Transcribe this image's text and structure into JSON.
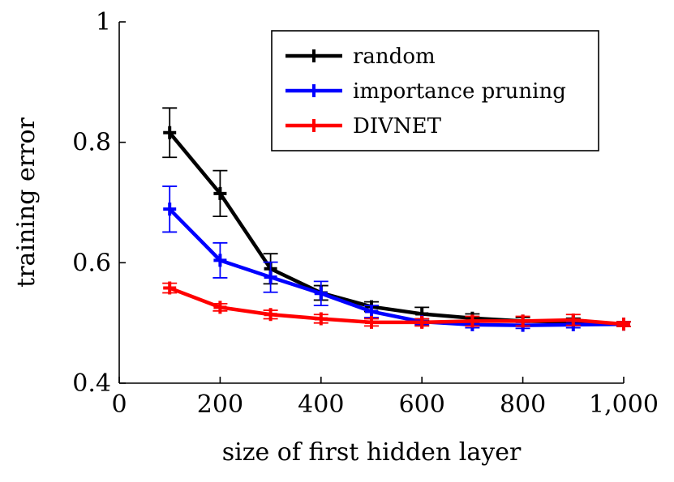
{
  "chart_data": {
    "type": "line",
    "title": "",
    "xlabel": "size of first hidden layer",
    "ylabel": "training error",
    "xlim": [
      0,
      1000
    ],
    "ylim": [
      0.4,
      1.0
    ],
    "x_ticks": [
      0,
      200,
      400,
      600,
      800,
      1000
    ],
    "x_tick_labels": [
      "0",
      "200",
      "400",
      "600",
      "800",
      "1,000"
    ],
    "y_ticks": [
      0.4,
      0.6,
      0.8,
      1.0
    ],
    "y_tick_labels": [
      "0.4",
      "0.6",
      "0.8",
      "1"
    ],
    "grid": false,
    "legend_position": "top-right",
    "x": [
      100,
      200,
      300,
      400,
      500,
      600,
      700,
      800,
      900,
      1000
    ],
    "series": [
      {
        "name": "random",
        "color": "#000000",
        "values": [
          0.816,
          0.715,
          0.59,
          0.55,
          0.527,
          0.515,
          0.508,
          0.503,
          0.502,
          0.498
        ],
        "errors": [
          0.041,
          0.038,
          0.025,
          0.012,
          0.008,
          0.011,
          0.007,
          0.006,
          0.006,
          0.004
        ]
      },
      {
        "name": "importance pruning",
        "color": "#0000ff",
        "values": [
          0.689,
          0.604,
          0.576,
          0.549,
          0.519,
          0.502,
          0.497,
          0.496,
          0.497,
          0.498
        ],
        "errors": [
          0.038,
          0.029,
          0.025,
          0.02,
          0.01,
          0.005,
          0.005,
          0.005,
          0.005,
          0.004
        ]
      },
      {
        "name": "DIVNET",
        "color": "#ff0000",
        "values": [
          0.558,
          0.526,
          0.514,
          0.507,
          0.501,
          0.501,
          0.503,
          0.503,
          0.505,
          0.498
        ],
        "errors": [
          0.008,
          0.006,
          0.007,
          0.007,
          0.006,
          0.006,
          0.008,
          0.008,
          0.009,
          0.004
        ]
      }
    ]
  }
}
